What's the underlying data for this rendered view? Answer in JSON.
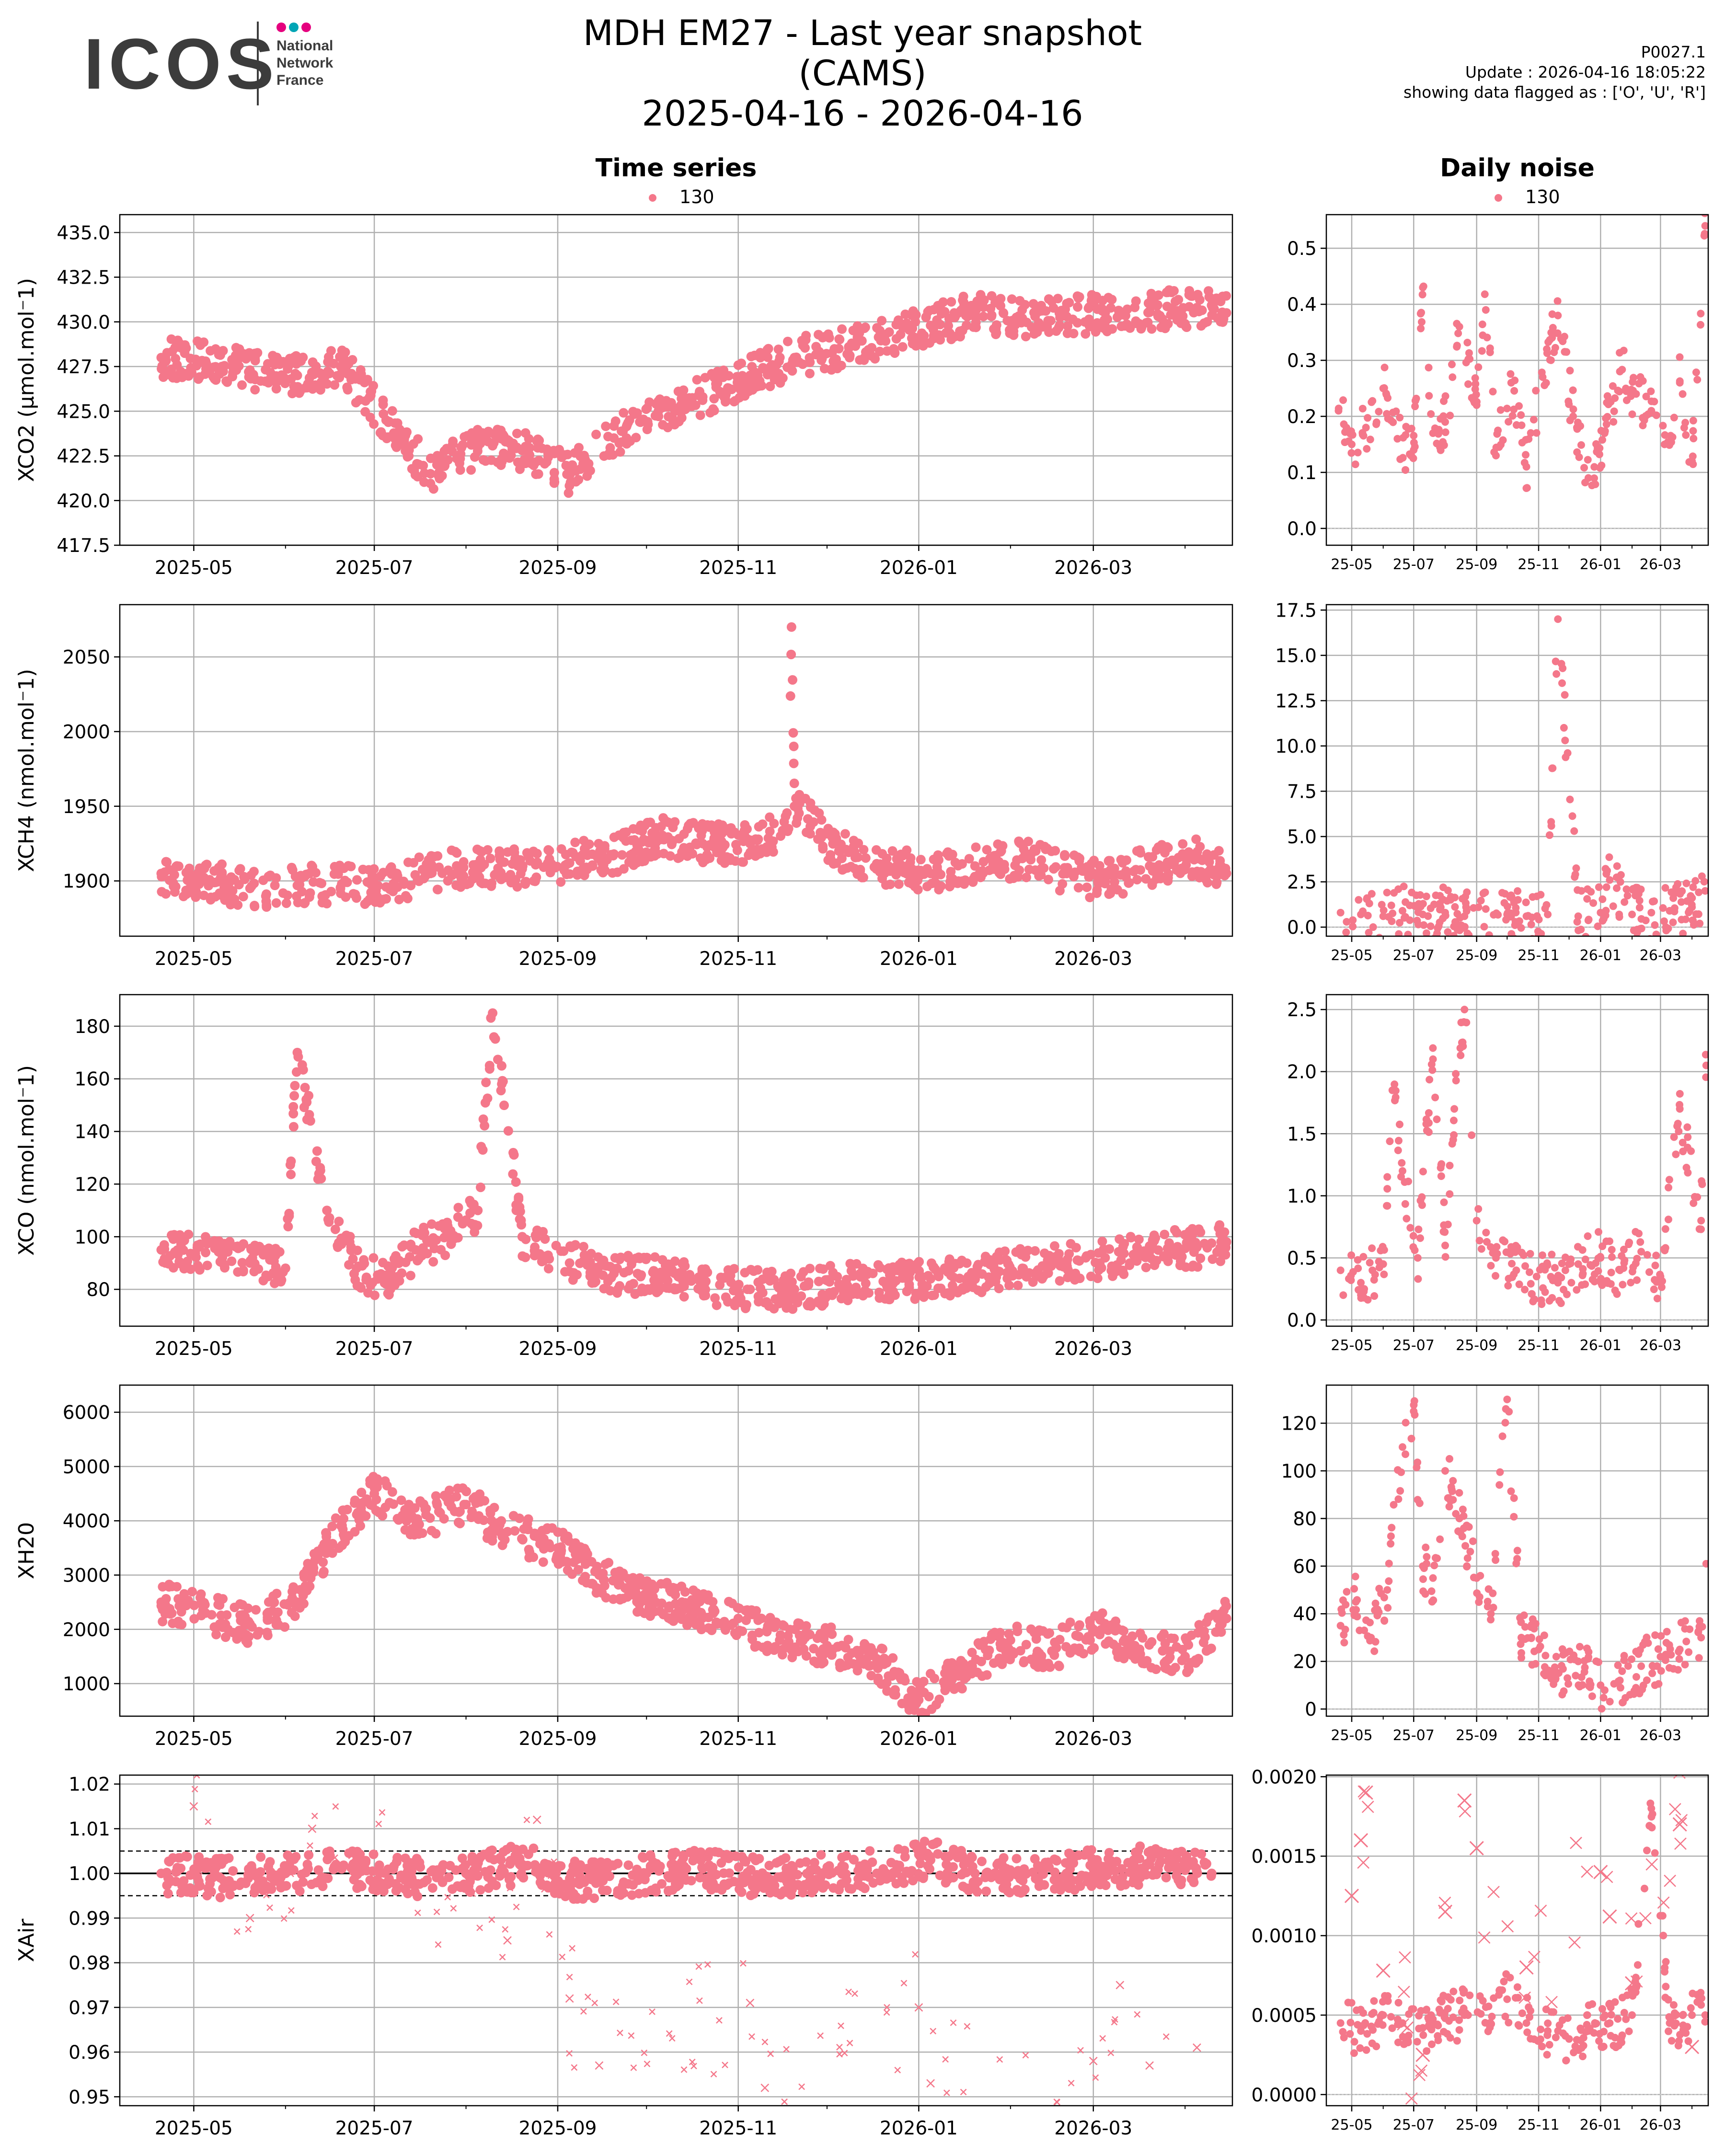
{
  "logo": {
    "wordmark": "ICOS",
    "subtitle": [
      "National",
      "Network",
      "France"
    ],
    "dot_colors": [
      "#e5007e",
      "#00a5b5",
      "#e5007e"
    ]
  },
  "header": {
    "title_line1": "MDH EM27 - Last year snapshot (CAMS)",
    "title_line2": "2025-04-16 - 2026-04-16",
    "code": "P0027.1",
    "update": "Update : 2026-04-16 18:05:22",
    "flags": "showing data flagged as : ['O', 'U', 'R']"
  },
  "columns": {
    "left_title": "Time series",
    "right_title": "Daily noise",
    "legend_label": "130",
    "series_color": "#f4778a"
  },
  "time_axis": {
    "start": "2025-04-16",
    "end": "2026-04-16",
    "major_ticks": [
      "2025-05-01",
      "2025-07-01",
      "2025-09-01",
      "2025-11-01",
      "2026-01-01",
      "2026-03-01"
    ],
    "major_labels": [
      "2025-05",
      "2025-07",
      "2025-09",
      "2025-11",
      "2026-01",
      "2026-03"
    ],
    "noise_labels": [
      "25-05",
      "25-07",
      "25-09",
      "25-11",
      "26-01",
      "26-03"
    ]
  },
  "chart_data": [
    {
      "type": "scatter",
      "panel": "time-series",
      "ylabel": "XCO2 (µmol.mol⁻1)",
      "ylim": [
        417.5,
        436.0
      ],
      "yticks": [
        417.5,
        420.0,
        422.5,
        425.0,
        427.5,
        430.0,
        432.5,
        435.0
      ],
      "ytick_labels": [
        "417.5",
        "420.0",
        "422.5",
        "425.0",
        "427.5",
        "430.0",
        "432.5",
        "435.0"
      ],
      "grid": true,
      "series": [
        {
          "name": "130",
          "x": [
            "2025-04-20",
            "2025-05-05",
            "2025-05-20",
            "2025-06-05",
            "2025-06-20",
            "2025-07-05",
            "2025-07-20",
            "2025-08-05",
            "2025-08-20",
            "2025-09-05",
            "2025-09-20",
            "2025-10-05",
            "2025-10-20",
            "2025-11-05",
            "2025-11-20",
            "2025-12-05",
            "2025-12-20",
            "2026-01-05",
            "2026-01-20",
            "2026-02-05",
            "2026-02-20",
            "2026-03-05",
            "2026-03-20",
            "2026-04-05",
            "2026-04-15"
          ],
          "y": [
            428.0,
            427.8,
            427.3,
            427.0,
            427.5,
            424.5,
            421.5,
            423.0,
            422.8,
            421.5,
            423.5,
            425.0,
            425.8,
            427.0,
            428.0,
            428.5,
            429.0,
            429.8,
            430.5,
            430.2,
            430.3,
            430.5,
            430.6,
            430.8,
            430.5
          ]
        }
      ]
    },
    {
      "type": "scatter",
      "panel": "daily-noise",
      "ylim": [
        -0.03,
        0.56
      ],
      "yticks": [
        0.0,
        0.1,
        0.2,
        0.3,
        0.4,
        0.5
      ],
      "ytick_labels": [
        "0.0",
        "0.1",
        "0.2",
        "0.3",
        "0.4",
        "0.5"
      ],
      "grid": true,
      "series": [
        {
          "name": "130",
          "x": [
            "2025-04-18",
            "2025-05-01",
            "2025-05-15",
            "2025-06-01",
            "2025-06-15",
            "2025-07-01",
            "2025-07-10",
            "2025-07-20",
            "2025-08-01",
            "2025-08-15",
            "2025-09-01",
            "2025-09-10",
            "2025-09-20",
            "2025-10-05",
            "2025-10-20",
            "2025-11-05",
            "2025-11-20",
            "2025-12-05",
            "2025-12-20",
            "2026-01-05",
            "2026-01-20",
            "2026-02-05",
            "2026-02-20",
            "2026-03-05",
            "2026-03-20",
            "2026-04-01",
            "2026-04-14"
          ],
          "y": [
            0.21,
            0.15,
            0.18,
            0.25,
            0.16,
            0.14,
            0.43,
            0.17,
            0.19,
            0.36,
            0.22,
            0.39,
            0.13,
            0.26,
            0.11,
            0.27,
            0.38,
            0.2,
            0.09,
            0.17,
            0.28,
            0.24,
            0.21,
            0.15,
            0.26,
            0.12,
            0.54
          ]
        }
      ]
    },
    {
      "type": "scatter",
      "panel": "time-series",
      "ylabel": "XCH4 (nmol.mol⁻1)",
      "ylim": [
        1863,
        2085
      ],
      "yticks": [
        1900,
        1950,
        2000,
        2050
      ],
      "ytick_labels": [
        "1900",
        "1950",
        "2000",
        "2050"
      ],
      "grid": true,
      "series": [
        {
          "name": "130",
          "x": [
            "2025-04-20",
            "2025-05-05",
            "2025-05-20",
            "2025-06-05",
            "2025-06-20",
            "2025-07-05",
            "2025-07-20",
            "2025-08-05",
            "2025-08-20",
            "2025-09-05",
            "2025-09-20",
            "2025-10-05",
            "2025-10-20",
            "2025-11-05",
            "2025-11-18",
            "2025-11-19",
            "2025-11-20",
            "2025-12-05",
            "2025-12-20",
            "2026-01-05",
            "2026-01-20",
            "2026-02-05",
            "2026-02-20",
            "2026-03-05",
            "2026-03-20",
            "2026-04-05",
            "2026-04-15"
          ],
          "y": [
            1905,
            1900,
            1895,
            1897,
            1898,
            1896,
            1905,
            1910,
            1908,
            1912,
            1918,
            1930,
            1925,
            1925,
            1935,
            2070,
            1950,
            1920,
            1910,
            1905,
            1910,
            1915,
            1905,
            1900,
            1910,
            1915,
            1905
          ]
        }
      ]
    },
    {
      "type": "scatter",
      "panel": "daily-noise",
      "ylim": [
        -0.5,
        17.8
      ],
      "yticks": [
        0.0,
        2.5,
        5.0,
        7.5,
        10.0,
        12.5,
        15.0,
        17.5
      ],
      "ytick_labels": [
        "0.0",
        "2.5",
        "5.0",
        "7.5",
        "10.0",
        "12.5",
        "15.0",
        "17.5"
      ],
      "grid": true,
      "series": [
        {
          "name": "130",
          "x": [
            "2025-04-20",
            "2025-05-10",
            "2025-06-01",
            "2025-06-20",
            "2025-07-10",
            "2025-08-01",
            "2025-08-20",
            "2025-09-10",
            "2025-10-01",
            "2025-10-20",
            "2025-11-10",
            "2025-11-20",
            "2025-12-10",
            "2026-01-01",
            "2026-01-10",
            "2026-02-01",
            "2026-02-20",
            "2026-03-10",
            "2026-04-01",
            "2026-04-14"
          ],
          "y": [
            0.8,
            0.7,
            0.6,
            0.9,
            0.7,
            0.8,
            0.6,
            1.0,
            0.7,
            0.6,
            0.7,
            17.0,
            0.6,
            0.8,
            2.6,
            0.7,
            0.8,
            0.9,
            1.1,
            2.0
          ]
        }
      ]
    },
    {
      "type": "scatter",
      "panel": "time-series",
      "ylabel": "XCO (nmol.mol⁻1)",
      "ylim": [
        66,
        192
      ],
      "yticks": [
        80,
        100,
        120,
        140,
        160,
        180
      ],
      "ytick_labels": [
        "80",
        "100",
        "120",
        "140",
        "160",
        "180"
      ],
      "grid": true,
      "series": [
        {
          "name": "130",
          "x": [
            "2025-04-20",
            "2025-05-05",
            "2025-05-20",
            "2025-06-01",
            "2025-06-05",
            "2025-06-15",
            "2025-06-25",
            "2025-07-05",
            "2025-07-15",
            "2025-07-25",
            "2025-08-05",
            "2025-08-10",
            "2025-08-20",
            "2025-09-05",
            "2025-09-20",
            "2025-10-05",
            "2025-10-20",
            "2025-11-05",
            "2025-11-20",
            "2025-12-05",
            "2025-12-20",
            "2026-01-05",
            "2026-01-20",
            "2026-02-05",
            "2026-02-20",
            "2026-03-05",
            "2026-03-20",
            "2026-04-05",
            "2026-04-15"
          ],
          "y": [
            95,
            94,
            90,
            88,
            170,
            110,
            88,
            82,
            95,
            100,
            110,
            185,
            100,
            90,
            86,
            85,
            82,
            80,
            80,
            82,
            83,
            84,
            86,
            88,
            90,
            92,
            95,
            96,
            98
          ]
        }
      ]
    },
    {
      "type": "scatter",
      "panel": "daily-noise",
      "ylim": [
        -0.05,
        2.62
      ],
      "yticks": [
        0.0,
        0.5,
        1.0,
        1.5,
        2.0,
        2.5
      ],
      "ytick_labels": [
        "0.0",
        "0.5",
        "1.0",
        "1.5",
        "2.0",
        "2.5"
      ],
      "grid": true,
      "series": [
        {
          "name": "130",
          "x": [
            "2025-04-20",
            "2025-05-10",
            "2025-06-01",
            "2025-06-10",
            "2025-06-20",
            "2025-07-05",
            "2025-07-20",
            "2025-08-01",
            "2025-08-10",
            "2025-08-20",
            "2025-09-01",
            "2025-09-20",
            "2025-10-10",
            "2025-10-30",
            "2025-11-20",
            "2025-12-10",
            "2026-01-01",
            "2026-01-20",
            "2026-02-10",
            "2026-03-01",
            "2026-03-20",
            "2026-04-10",
            "2026-04-15"
          ],
          "y": [
            0.4,
            0.3,
            0.45,
            1.85,
            1.2,
            0.5,
            2.1,
            0.6,
            1.7,
            2.5,
            0.8,
            0.5,
            0.4,
            0.35,
            0.3,
            0.45,
            0.5,
            0.4,
            0.55,
            0.35,
            1.7,
            0.8,
            2.05
          ]
        }
      ]
    },
    {
      "type": "scatter",
      "panel": "time-series",
      "ylabel": "XH20",
      "ylim": [
        400,
        6500
      ],
      "yticks": [
        1000,
        2000,
        3000,
        4000,
        5000,
        6000
      ],
      "ytick_labels": [
        "1000",
        "2000",
        "3000",
        "4000",
        "5000",
        "6000"
      ],
      "grid": true,
      "series": [
        {
          "name": "130",
          "x": [
            "2025-04-20",
            "2025-05-05",
            "2025-05-20",
            "2025-06-05",
            "2025-06-15",
            "2025-07-01",
            "2025-07-15",
            "2025-08-01",
            "2025-08-15",
            "2025-09-01",
            "2025-09-15",
            "2025-10-01",
            "2025-10-15",
            "2025-11-01",
            "2025-11-15",
            "2025-12-01",
            "2025-12-15",
            "2026-01-01",
            "2026-01-15",
            "2026-02-01",
            "2026-02-15",
            "2026-03-01",
            "2026-03-15",
            "2026-04-01",
            "2026-04-15"
          ],
          "y": [
            2500,
            2300,
            2100,
            2500,
            3500,
            4500,
            4000,
            4300,
            3800,
            3500,
            3000,
            2600,
            2400,
            2200,
            1800,
            1700,
            1500,
            700,
            1200,
            1800,
            1600,
            2000,
            1700,
            1500,
            2200
          ]
        }
      ]
    },
    {
      "type": "scatter",
      "panel": "daily-noise",
      "ylim": [
        -3,
        136
      ],
      "yticks": [
        0,
        20,
        40,
        60,
        80,
        100,
        120
      ],
      "ytick_labels": [
        "0",
        "20",
        "40",
        "60",
        "80",
        "100",
        "120"
      ],
      "grid": true,
      "series": [
        {
          "name": "130",
          "x": [
            "2025-04-20",
            "2025-05-05",
            "2025-05-20",
            "2025-06-05",
            "2025-06-20",
            "2025-07-01",
            "2025-07-10",
            "2025-07-20",
            "2025-08-01",
            "2025-08-15",
            "2025-09-01",
            "2025-09-15",
            "2025-10-01",
            "2025-10-15",
            "2025-11-01",
            "2025-11-20",
            "2025-12-10",
            "2026-01-01",
            "2026-01-20",
            "2026-02-10",
            "2026-03-01",
            "2026-03-20",
            "2026-04-10",
            "2026-04-15"
          ],
          "y": [
            35,
            45,
            30,
            50,
            110,
            125,
            60,
            55,
            100,
            80,
            55,
            40,
            130,
            30,
            25,
            15,
            20,
            10,
            12,
            18,
            22,
            25,
            30,
            61
          ]
        }
      ]
    },
    {
      "type": "scatter",
      "panel": "time-series",
      "ylabel": "XAir",
      "ylim": [
        0.948,
        1.022
      ],
      "yticks": [
        0.95,
        0.96,
        0.97,
        0.98,
        0.99,
        1.0,
        1.01,
        1.02
      ],
      "ytick_labels": [
        "0.95",
        "0.96",
        "0.97",
        "0.98",
        "0.99",
        "1.00",
        "1.01",
        "1.02"
      ],
      "reference_lines": {
        "solid": 1.0,
        "dashed": [
          0.995,
          1.005
        ]
      },
      "grid": true,
      "series": [
        {
          "name": "130",
          "marker": "circle",
          "x": [
            "2025-04-20",
            "2025-05-10",
            "2025-06-01",
            "2025-06-20",
            "2025-07-10",
            "2025-08-01",
            "2025-08-20",
            "2025-09-10",
            "2025-10-01",
            "2025-10-20",
            "2025-11-10",
            "2025-12-01",
            "2025-12-20",
            "2026-01-05",
            "2026-01-20",
            "2026-02-10",
            "2026-03-01",
            "2026-03-20",
            "2026-04-10"
          ],
          "y": [
            1.0,
            0.999,
            1.0,
            1.001,
            0.999,
            1.0,
            1.002,
            0.998,
            1.0,
            1.001,
            0.999,
            1.0,
            1.001,
            1.003,
            1.0,
            0.999,
            1.001,
            1.002,
            1.0
          ]
        },
        {
          "marker": "x",
          "x": [
            "2025-05-01",
            "2025-05-20",
            "2025-06-10",
            "2025-08-15",
            "2025-08-25",
            "2025-09-05",
            "2025-09-15",
            "2025-11-05",
            "2025-11-10",
            "2026-01-01",
            "2026-01-05",
            "2026-03-01",
            "2026-03-10",
            "2026-03-20",
            "2026-04-05"
          ],
          "y": [
            1.015,
            0.99,
            1.01,
            0.985,
            1.012,
            0.972,
            0.957,
            0.971,
            0.952,
            0.97,
            0.953,
            0.958,
            0.975,
            0.957,
            0.961
          ]
        }
      ]
    },
    {
      "type": "scatter",
      "panel": "daily-noise",
      "ylim": [
        -7e-05,
        0.00201
      ],
      "yticks": [
        0.0,
        0.0005,
        0.001,
        0.0015,
        0.002
      ],
      "ytick_labels": [
        "0.0000",
        "0.0005",
        "0.0010",
        "0.0015",
        "0.0020"
      ],
      "grid": true,
      "series": [
        {
          "name": "130",
          "marker": "circle",
          "x": [
            "2025-04-20",
            "2025-05-10",
            "2025-06-01",
            "2025-06-20",
            "2025-07-10",
            "2025-08-01",
            "2025-08-20",
            "2025-09-10",
            "2025-10-01",
            "2025-10-20",
            "2025-11-10",
            "2025-12-01",
            "2025-12-20",
            "2026-01-10",
            "2026-02-01",
            "2026-02-20",
            "2026-03-10",
            "2026-04-01",
            "2026-04-14"
          ],
          "y": [
            0.00045,
            0.0004,
            0.0005,
            0.00045,
            0.00042,
            0.00048,
            0.0005,
            0.00055,
            0.0006,
            0.00045,
            0.0004,
            0.00035,
            0.0004,
            0.00045,
            0.0005,
            0.0018,
            0.00045,
            0.0005,
            0.0005
          ]
        },
        {
          "marker": "x",
          "x": [
            "2025-05-01",
            "2025-05-10",
            "2025-05-15",
            "2025-06-01",
            "2025-07-10",
            "2025-08-01",
            "2025-08-20",
            "2025-09-01",
            "2025-10-20",
            "2026-01-01",
            "2026-01-10",
            "2026-02-01",
            "2026-03-20",
            "2026-04-01"
          ],
          "y": [
            0.00125,
            0.0016,
            0.0019,
            0.00078,
            0.00025,
            0.00115,
            0.00185,
            0.00155,
            0.0008,
            0.0014,
            0.00112,
            0.0007,
            0.0017,
            0.0003
          ]
        }
      ]
    }
  ]
}
